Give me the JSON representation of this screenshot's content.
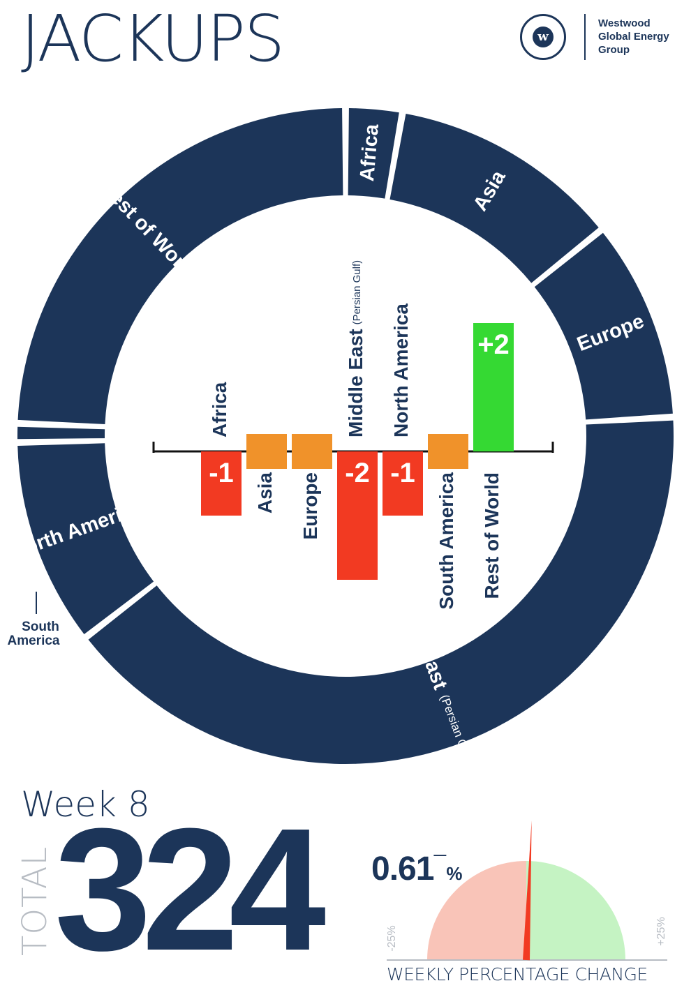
{
  "title": "JACKUPS",
  "logo": {
    "mark": "w",
    "text_lines": [
      "Westwood",
      "Global Energy",
      "Group"
    ]
  },
  "colors": {
    "navy": "#1c3559",
    "decrease": "#f23a22",
    "no_change": "#f0922a",
    "increase": "#35d933",
    "gauge_negative": "#f9c4b8",
    "gauge_positive": "#c5f3c3",
    "needle": "#f23a22"
  },
  "chart_data": [
    {
      "type": "pie",
      "style": "donut",
      "description_key": "regional share of jackups",
      "slices": [
        {
          "label": "Africa",
          "sublabel": "",
          "value": 9
        },
        {
          "label": "Asia",
          "sublabel": "",
          "value": 37
        },
        {
          "label": "Europe",
          "sublabel": "",
          "value": 32
        },
        {
          "label": "Middle East",
          "sublabel": "(Persian Gulf & Red Sea)",
          "value": 131
        },
        {
          "label": "North America",
          "sublabel": "",
          "value": 33
        },
        {
          "label": "South America",
          "sublabel": "",
          "value": 3
        },
        {
          "label": "Rest of World",
          "sublabel": "",
          "value": 79
        }
      ]
    },
    {
      "type": "bar",
      "categories": [
        "Africa",
        "Asia",
        "Europe",
        "Middle East",
        "North America",
        "South America",
        "Rest of World"
      ],
      "sublabels": [
        "",
        "",
        "",
        "(Persian Gulf)",
        "",
        "",
        ""
      ],
      "values": [
        -1,
        0,
        0,
        -2,
        -1,
        0,
        2
      ],
      "value_labels": [
        "-1",
        "",
        "",
        "-2",
        "-1",
        "",
        "+2"
      ]
    },
    {
      "type": "gauge",
      "value": 0.61,
      "value_label": "0.61",
      "direction_symbol": "—",
      "unit": "%",
      "min_label": "-25%",
      "max_label": "+25%",
      "range": [
        -25,
        25
      ],
      "title": "WEEKLY PERCENTAGE CHANGE"
    }
  ],
  "week_label": "Week 8",
  "total_label": "TOTAL",
  "total_value": "324"
}
